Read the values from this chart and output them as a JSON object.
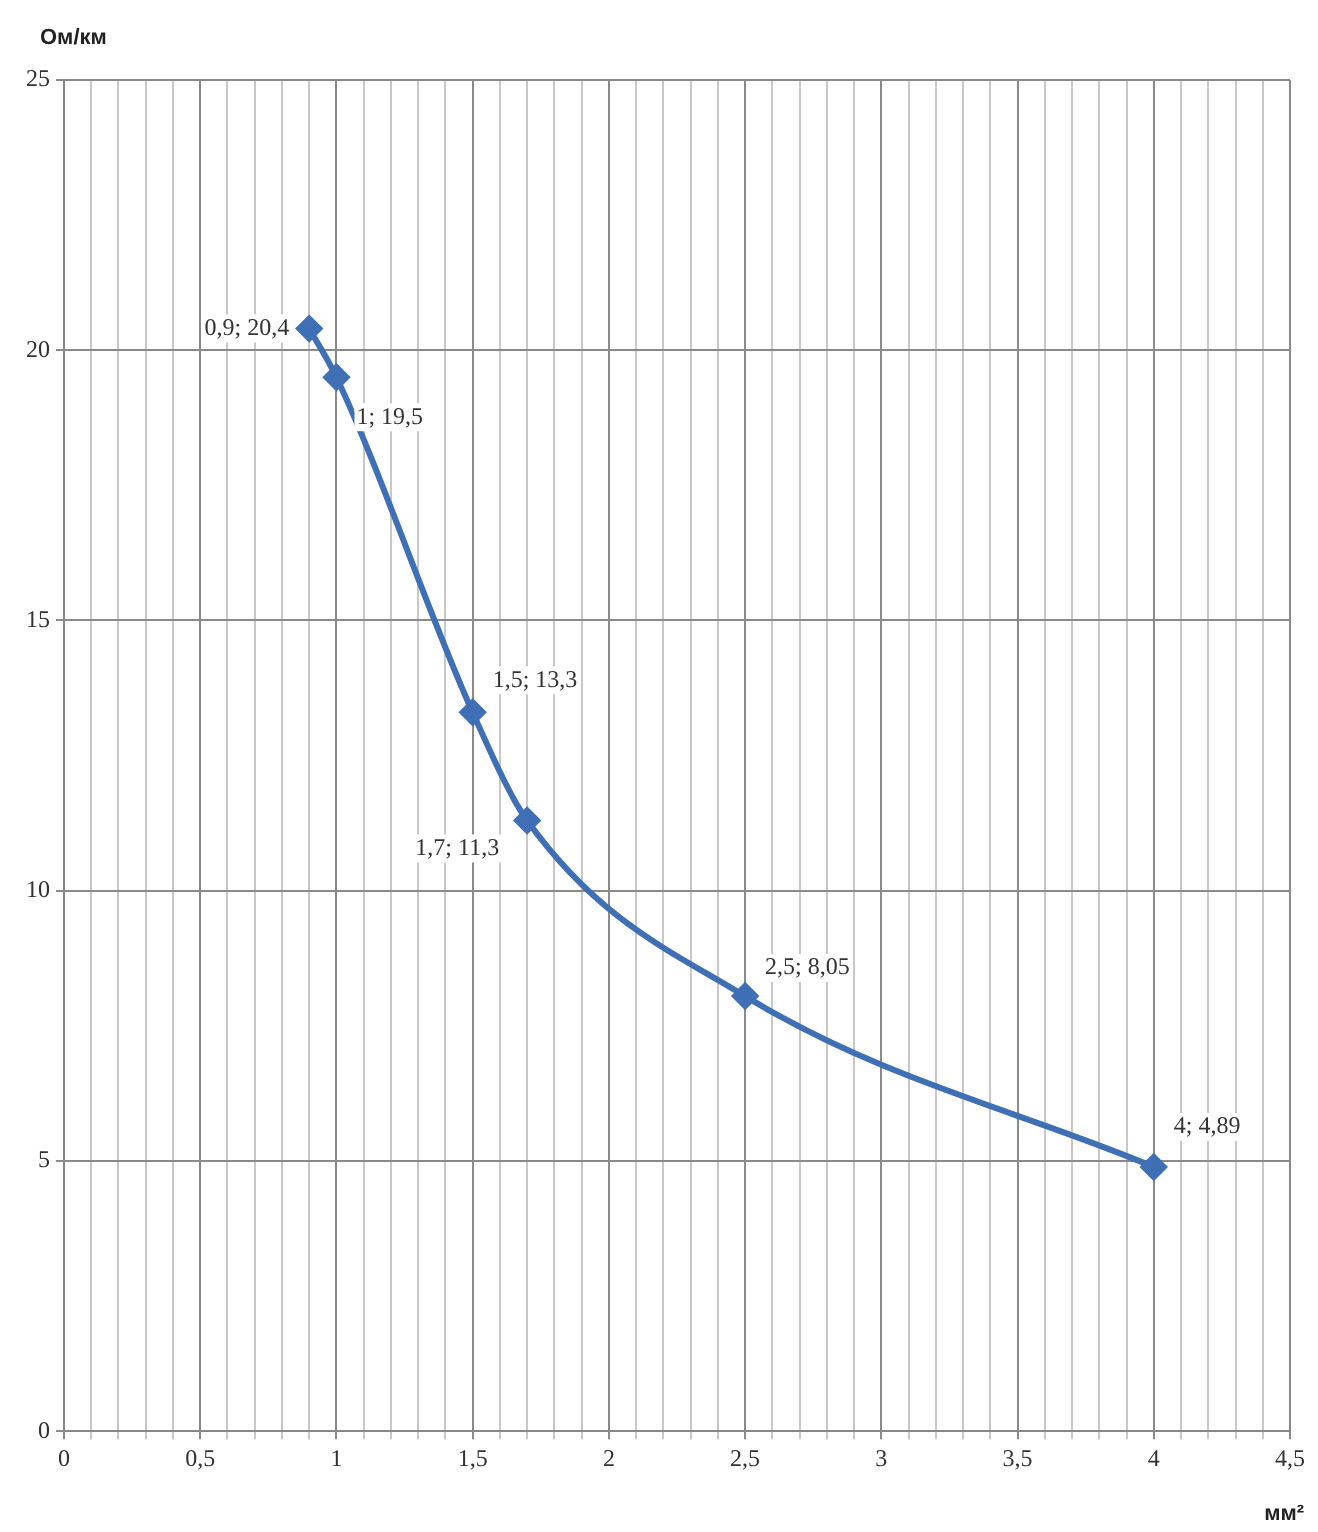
{
  "chart_data": {
    "type": "line",
    "xlabel": "мм²",
    "ylabel": "Ом/км",
    "x": [
      0.9,
      1,
      1.5,
      1.7,
      2.5,
      4
    ],
    "series": [
      {
        "color": "#3f6fb5",
        "values": [
          20.4,
          19.5,
          13.3,
          11.3,
          8.05,
          4.89
        ],
        "value_labels": [
          "0,9; 20,4",
          "1; 19,5",
          "1,5; 13,3",
          "1,7; 11,3",
          "2,5; 8,05",
          "4; 4,89"
        ]
      }
    ],
    "xlim": [
      0,
      4.5
    ],
    "xticks": [
      0,
      {
        "value": 0.1,
        "label": null
      },
      {
        "value": 0.2,
        "label": null
      },
      {
        "value": 0.3,
        "label": null
      },
      {
        "value": 0.4,
        "label": null
      },
      {
        "value": 0.5,
        "label": "0,5"
      },
      {
        "value": 0.6,
        "label": null
      },
      {
        "value": 0.7,
        "label": null
      },
      {
        "value": 0.8,
        "label": null
      },
      {
        "value": 0.9,
        "label": null
      },
      1,
      {
        "value": 1.1,
        "label": null
      },
      {
        "value": 1.2,
        "label": null
      },
      {
        "value": 1.3,
        "label": null
      },
      {
        "value": 1.4,
        "label": null
      },
      {
        "value": 1.5,
        "label": "1,5"
      },
      {
        "value": 1.6,
        "label": null
      },
      {
        "value": 1.7,
        "label": null
      },
      {
        "value": 1.8,
        "label": null
      },
      {
        "value": 1.9,
        "label": null
      },
      2,
      {
        "value": 2.1,
        "label": null
      },
      {
        "value": 2.2,
        "label": null
      },
      {
        "value": 2.3,
        "label": null
      },
      {
        "value": 2.4,
        "label": null
      },
      {
        "value": 2.5,
        "label": "2,5"
      },
      {
        "value": 2.6,
        "label": null
      },
      {
        "value": 2.7,
        "label": null
      },
      {
        "value": 2.8,
        "label": null
      },
      {
        "value": 2.9,
        "label": null
      },
      3,
      {
        "value": 3.1,
        "label": null
      },
      {
        "value": 3.2,
        "label": null
      },
      {
        "value": 3.3,
        "label": null
      },
      {
        "value": 3.4,
        "label": null
      },
      {
        "value": 3.5,
        "label": "3,5"
      },
      {
        "value": 3.6,
        "label": null
      },
      {
        "value": 3.7,
        "label": null
      },
      {
        "value": 3.8,
        "label": null
      },
      {
        "value": 3.9,
        "label": null
      },
      4,
      {
        "value": 4.1,
        "label": null
      },
      {
        "value": 4.2,
        "label": null
      },
      {
        "value": 4.3,
        "label": null
      },
      {
        "value": 4.4,
        "label": null
      },
      {
        "value": 4.5,
        "label": "4,5"
      }
    ],
    "ylim": [
      0,
      25
    ],
    "yticks": [
      0,
      5,
      10,
      15,
      20,
      25
    ],
    "grid": true,
    "marker": "diamond",
    "line_style": "solid"
  }
}
